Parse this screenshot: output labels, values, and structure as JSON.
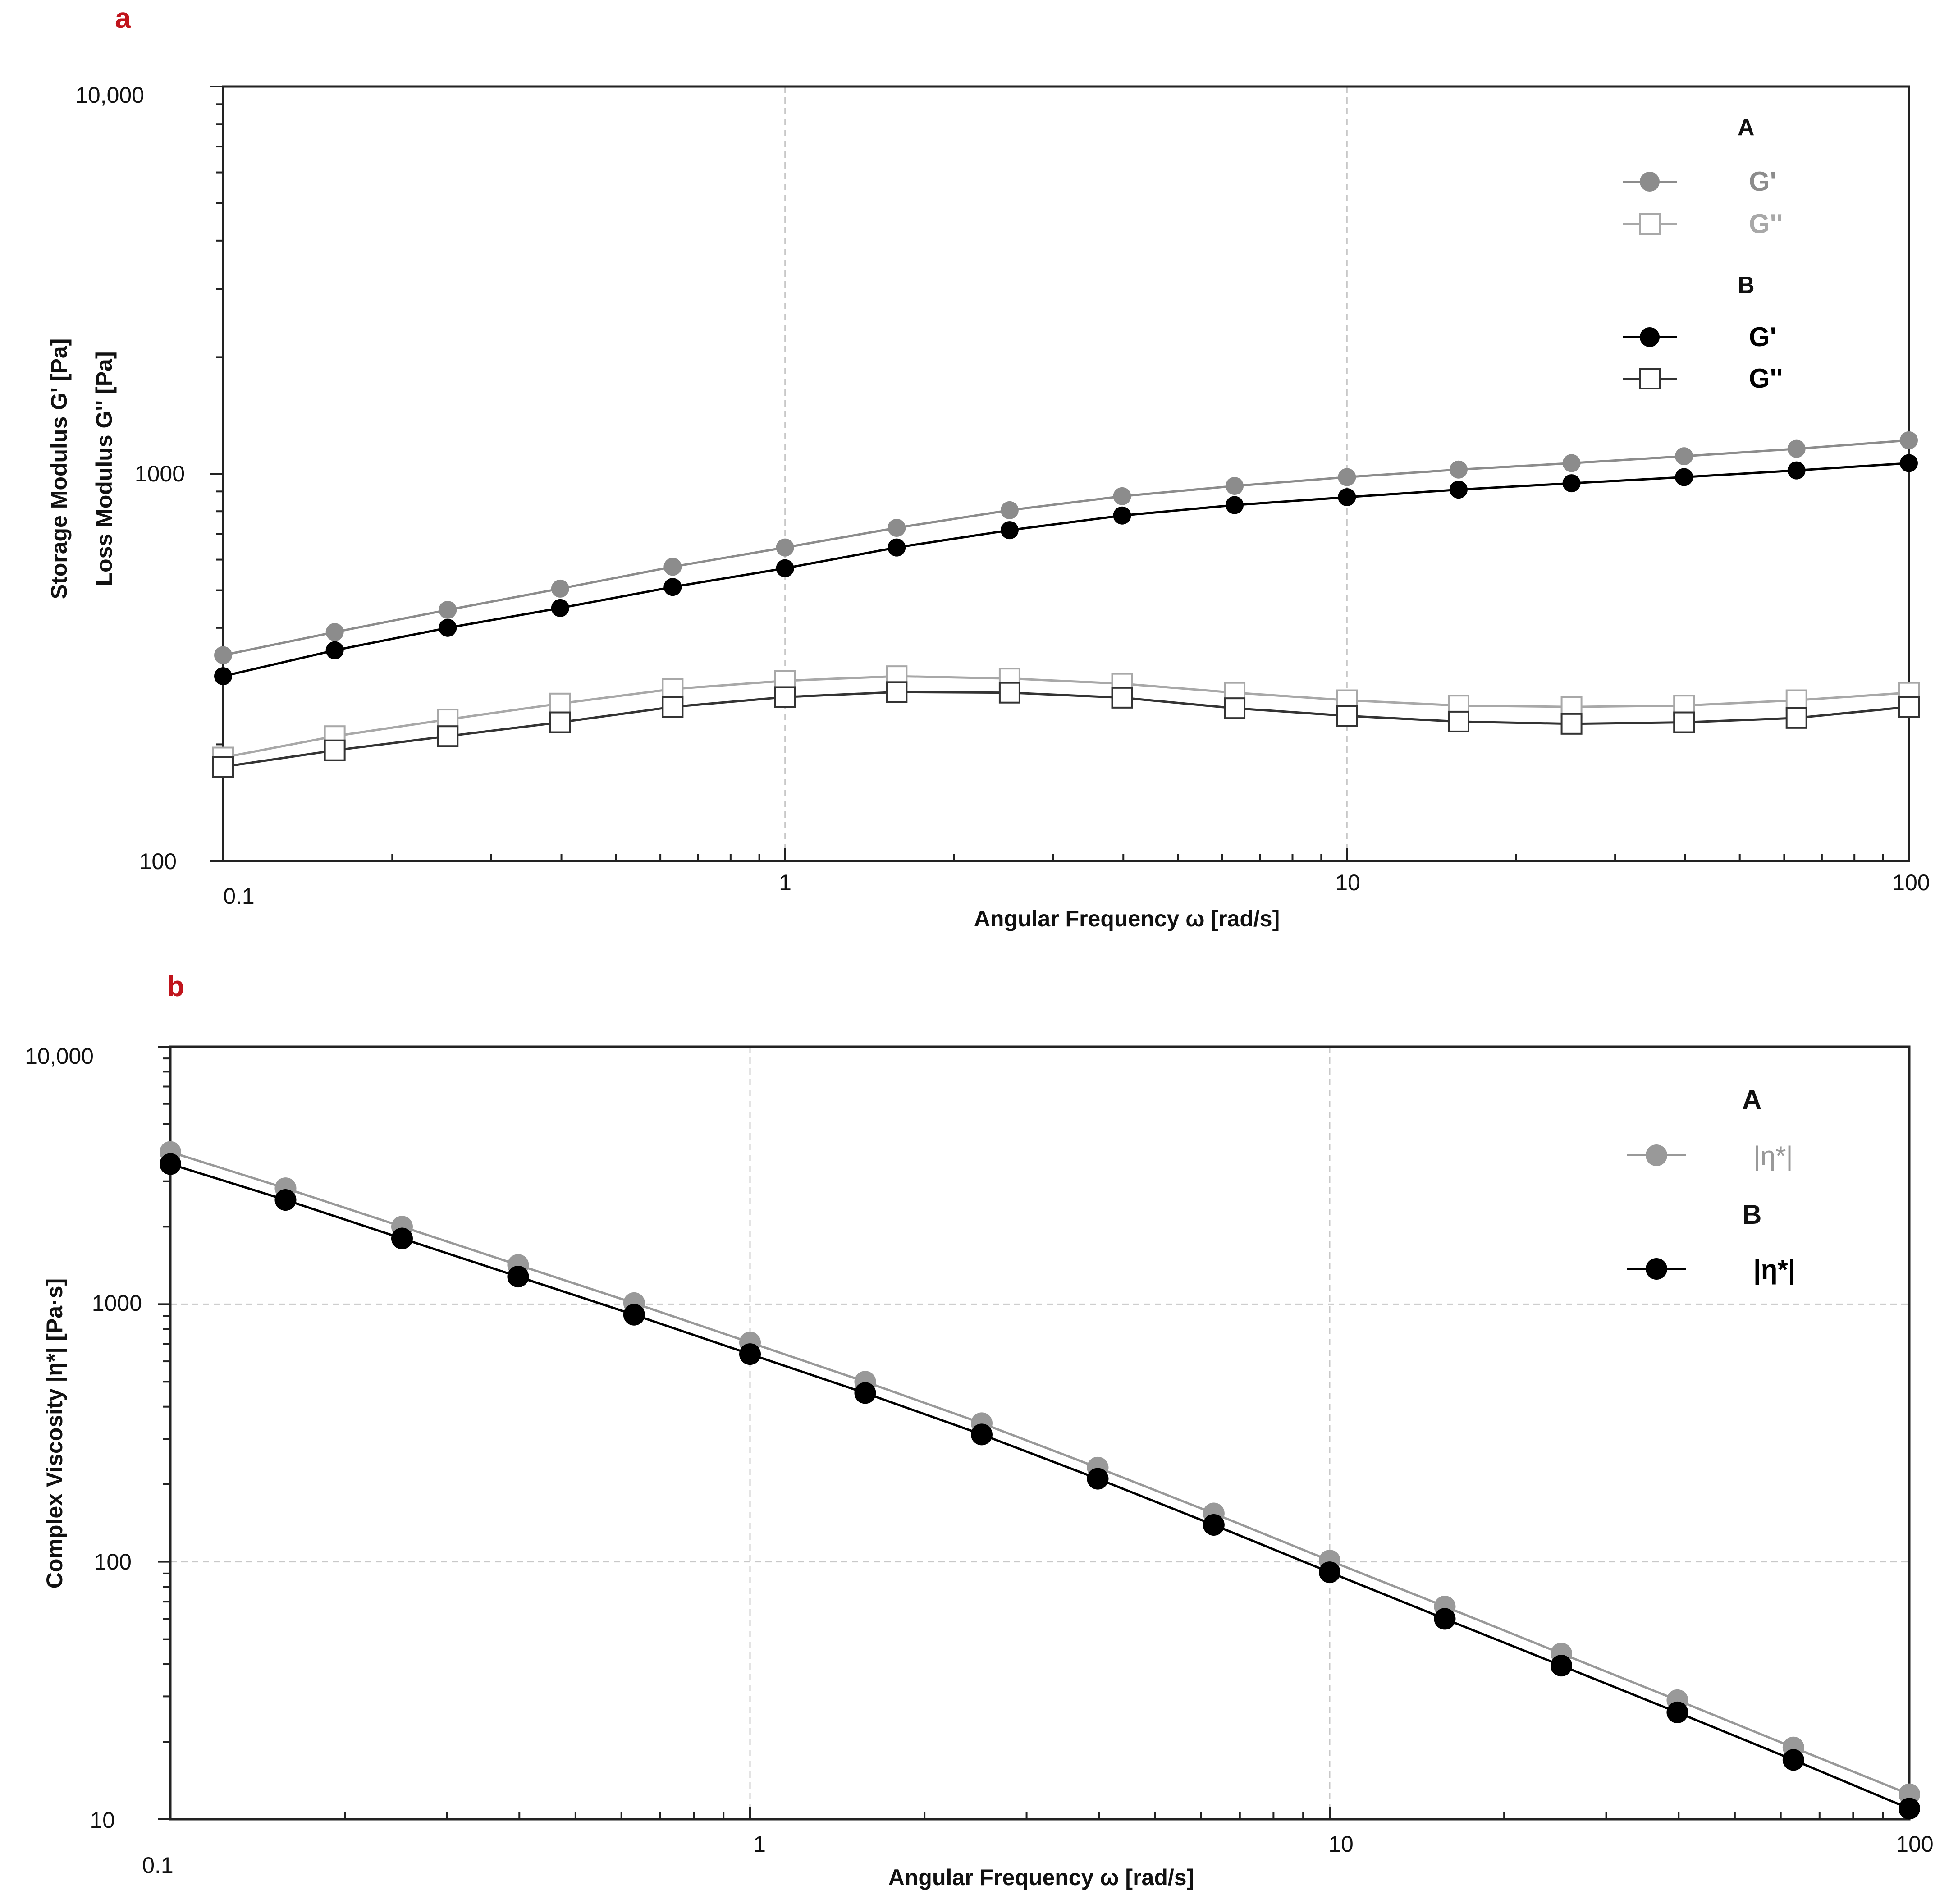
{
  "chart_data": [
    {
      "panel": "a",
      "type": "line",
      "title": "",
      "xlabel": "Angular Frequency ω [rad/s]",
      "ylabel": "Storage Modulus G' [Pa]",
      "ylabel2": "Loss Modulus G'' [Pa]",
      "xscale": "log",
      "yscale": "log",
      "xlim": [
        0.1,
        100
      ],
      "ylim": [
        100,
        10000
      ],
      "x_tick_labels": [
        "0.1",
        "1",
        "10",
        "100"
      ],
      "y_tick_labels": [
        "100",
        "1000",
        "10,000"
      ],
      "grid": "vertical at decades",
      "legend_position": "top-right",
      "x": [
        0.1,
        0.158,
        0.251,
        0.398,
        0.631,
        1,
        1.58,
        2.51,
        3.98,
        6.31,
        10,
        15.8,
        25.1,
        39.8,
        63.1,
        100
      ],
      "series": [
        {
          "name": "G'",
          "group": "A",
          "marker": "filled-circle",
          "color": "#8c8c8c",
          "values": [
            340,
            390,
            445,
            505,
            575,
            645,
            725,
            805,
            875,
            930,
            980,
            1025,
            1065,
            1110,
            1160,
            1220
          ]
        },
        {
          "name": "G''",
          "group": "A",
          "marker": "open-square",
          "color": "#a8a8a8",
          "values": [
            185,
            210,
            232,
            255,
            278,
            292,
            300,
            296,
            287,
            272,
            260,
            252,
            250,
            252,
            260,
            272
          ]
        },
        {
          "name": "G'",
          "group": "B",
          "marker": "filled-circle",
          "color": "#000000",
          "values": [
            300,
            350,
            400,
            450,
            510,
            570,
            645,
            715,
            780,
            830,
            870,
            910,
            945,
            980,
            1020,
            1065
          ]
        },
        {
          "name": "G''",
          "group": "B",
          "marker": "open-square",
          "color": "#333333",
          "values": [
            175,
            193,
            210,
            228,
            250,
            265,
            273,
            272,
            264,
            248,
            237,
            229,
            226,
            228,
            234,
            250
          ]
        }
      ],
      "legend": {
        "group_a": "A",
        "group_b": "B",
        "a_gp": "G'",
        "a_gpp": "G''",
        "b_gp": "G'",
        "b_gpp": "G''"
      }
    },
    {
      "panel": "b",
      "type": "line",
      "title": "",
      "xlabel": "Angular Frequency ω [rad/s]",
      "ylabel": "Complex Viscosity |η*| [Pa·s]",
      "xscale": "log",
      "yscale": "log",
      "xlim": [
        0.1,
        100
      ],
      "ylim": [
        10,
        10000
      ],
      "x_tick_labels": [
        "0.1",
        "1",
        "10",
        "100"
      ],
      "y_tick_labels": [
        "10",
        "100",
        "1000",
        "10,000"
      ],
      "grid": "both at decades",
      "legend_position": "top-right",
      "x": [
        0.1,
        0.158,
        0.251,
        0.398,
        0.631,
        1,
        1.58,
        2.51,
        3.98,
        6.31,
        10,
        15.8,
        25.1,
        39.8,
        63.1,
        100
      ],
      "series": [
        {
          "name": "|η*|",
          "group": "A",
          "marker": "filled-circle",
          "color": "#999999",
          "values": [
            3900,
            2820,
            2000,
            1420,
            1010,
            710,
            500,
            345,
            232,
            154,
            101,
            67,
            44,
            29,
            19,
            12.5
          ]
        },
        {
          "name": "|η*|",
          "group": "B",
          "marker": "filled-circle",
          "color": "#000000",
          "values": [
            3500,
            2540,
            1800,
            1280,
            910,
            640,
            452,
            312,
            210,
            139,
            91,
            60,
            39.5,
            26,
            17,
            11
          ]
        }
      ],
      "legend": {
        "group_a": "A",
        "group_b": "B",
        "a_eta": "|η*|",
        "b_eta": "|η*|"
      }
    }
  ]
}
